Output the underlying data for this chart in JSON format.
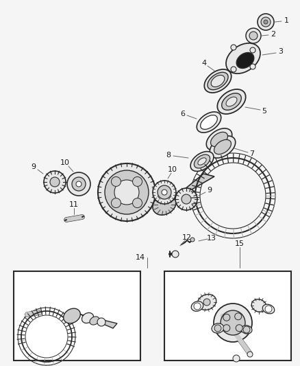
{
  "bg_color": "#f5f5f5",
  "white": "#ffffff",
  "black": "#1a1a1a",
  "gray_light": "#d8d8d8",
  "gray_med": "#aaaaaa",
  "gray_dark": "#666666",
  "stroke": "#2a2a2a",
  "fill_light": "#e8e8e8",
  "fill_med": "#cccccc",
  "fill_dark": "#999999",
  "fig_width": 4.38,
  "fig_height": 5.33,
  "dpi": 100
}
